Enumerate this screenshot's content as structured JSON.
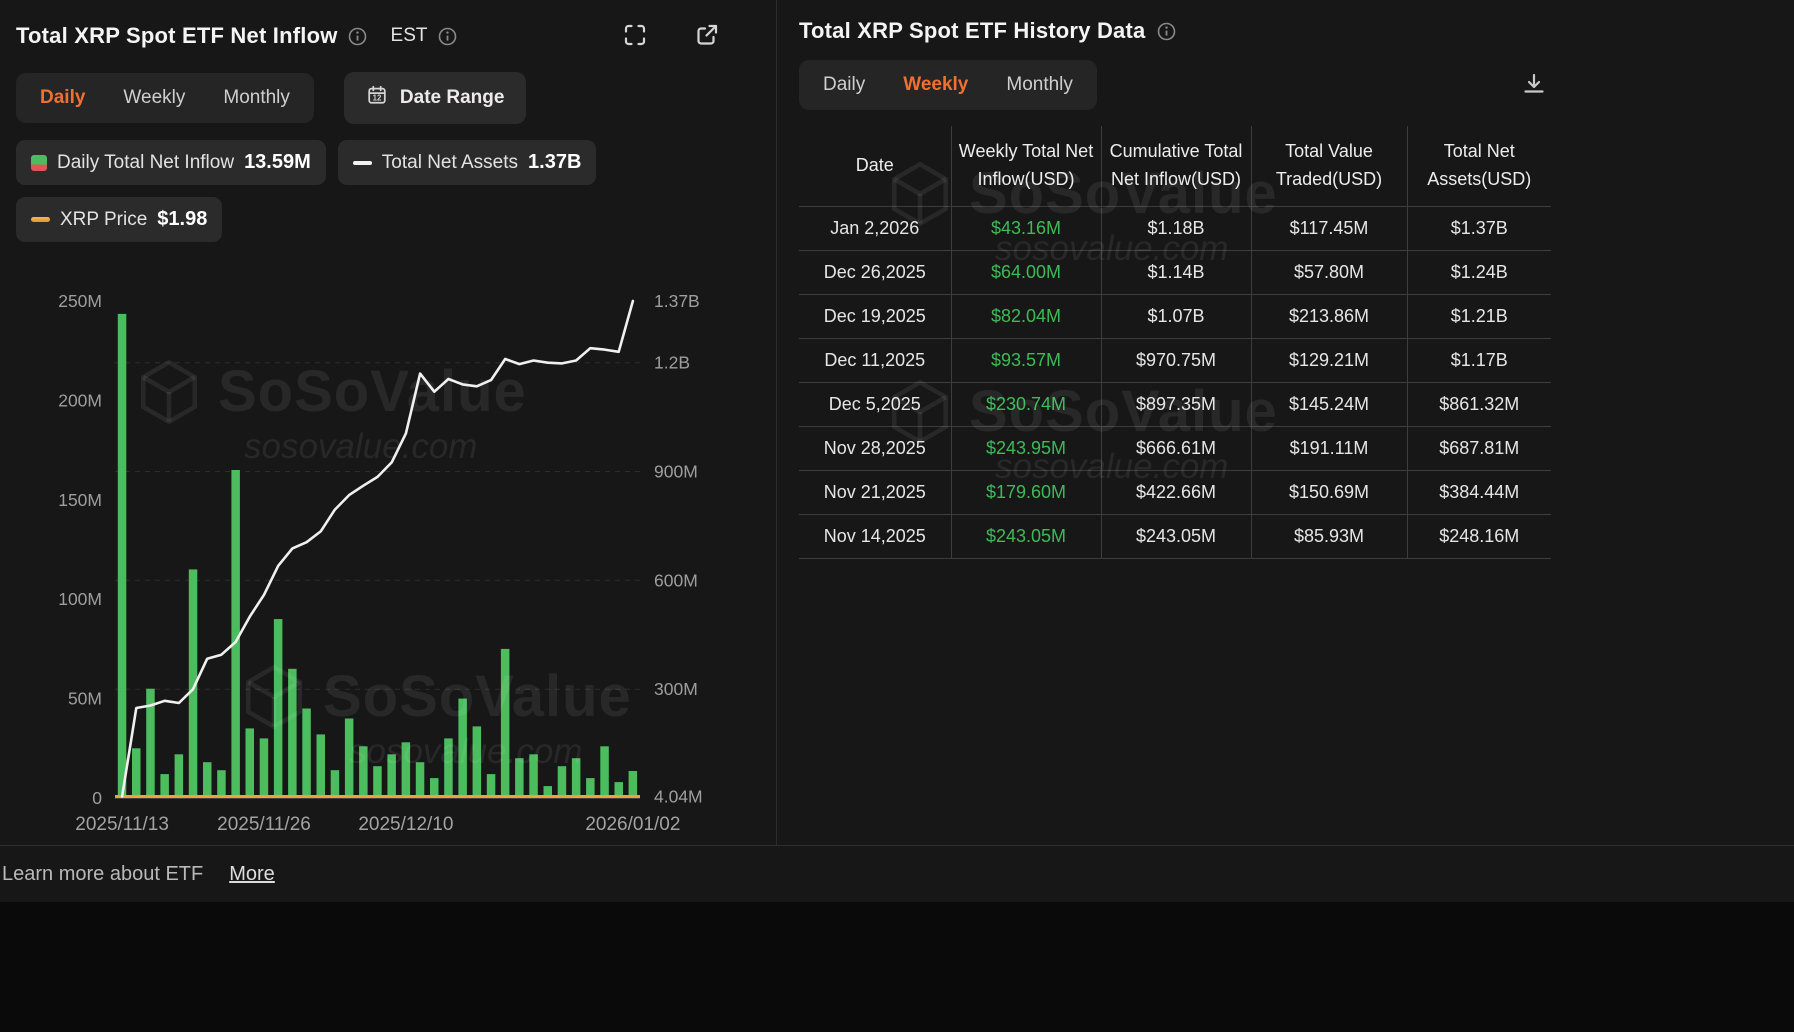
{
  "colors": {
    "accent_orange": "#f0702e",
    "positive_green": "#3dbb57",
    "bar_green": "#4bbd5e",
    "assets_line_white": "#f0f0f0",
    "price_line_orange": "#eda33c"
  },
  "watermark": {
    "brand": "SoSoValue",
    "domain": "sosovalue.com"
  },
  "left_panel": {
    "title": "Total XRP Spot ETF Net Inflow",
    "timezone": "EST",
    "tabs": [
      {
        "label": "Daily"
      },
      {
        "label": "Weekly"
      },
      {
        "label": "Monthly"
      }
    ],
    "active_tab": "Daily",
    "date_range_label": "Date Range",
    "legend": [
      {
        "label": "Daily Total Net Inflow",
        "value": "13.59M"
      },
      {
        "label": "Total Net Assets",
        "value": "1.37B"
      },
      {
        "label": "XRP Price",
        "value": "$1.98"
      }
    ]
  },
  "chart_data": {
    "type": "bar+line",
    "title": "Total XRP Spot ETF Net Inflow (Daily)",
    "x_range": [
      "2025/11/13",
      "2026/01/02"
    ],
    "x_tick_labels": [
      {
        "index": 0,
        "label": "2025/11/13"
      },
      {
        "index": 10,
        "label": "2025/11/26"
      },
      {
        "index": 20,
        "label": "2025/12/10"
      },
      {
        "index": 36,
        "label": "2026/01/02"
      }
    ],
    "left_axis": {
      "name": "Daily Total Net Inflow (USD)",
      "max": 250,
      "ticks": [
        "250M",
        "200M",
        "150M",
        "100M",
        "50M",
        "0"
      ],
      "tick_values": [
        250,
        200,
        150,
        100,
        50,
        0
      ]
    },
    "right_axis": {
      "name": "Total Net Assets (USD)",
      "max": 1370,
      "ticks": [
        {
          "label": "1.37B",
          "value": 1370
        },
        {
          "label": "1.2B",
          "value": 1200
        },
        {
          "label": "900M",
          "value": 900
        },
        {
          "label": "600M",
          "value": 600
        },
        {
          "label": "300M",
          "value": 300
        },
        {
          "label": "4.04M",
          "value": 4.04
        }
      ]
    },
    "bar_series": {
      "name": "Daily Total Net Inflow (USD, millions, estimated from chart)",
      "color": "#4bbd5e",
      "values": [
        243.5,
        25,
        55,
        12,
        22,
        115,
        18,
        14,
        165,
        35,
        30,
        90,
        65,
        45,
        32,
        14,
        40,
        26,
        16,
        22,
        28,
        18,
        10,
        30,
        50,
        36,
        12,
        75,
        20,
        22,
        6,
        16,
        20,
        10,
        26,
        8,
        13.59
      ]
    },
    "line_series": {
      "name": "Total Net Assets (USD, millions, estimated from chart)",
      "color": "#f0f0f0",
      "values": [
        4,
        248,
        255,
        268,
        262,
        300,
        384,
        395,
        430,
        500,
        560,
        640,
        688,
        705,
        735,
        795,
        835,
        861,
        885,
        925,
        1005,
        1170,
        1120,
        1155,
        1140,
        1135,
        1152,
        1210,
        1196,
        1206,
        1200,
        1198,
        1206,
        1240,
        1236,
        1230,
        1370
      ]
    },
    "price_series": {
      "name": "XRP Price (USD)",
      "color": "#eda33c",
      "current_value": 1.98,
      "note": "flat along baseline at this axis scale"
    }
  },
  "right_panel": {
    "title": "Total XRP Spot ETF History Data",
    "tabs": [
      {
        "label": "Daily"
      },
      {
        "label": "Weekly"
      },
      {
        "label": "Monthly"
      }
    ],
    "active_tab": "Weekly",
    "table": {
      "headers": [
        "Date",
        "Weekly Total Net Inflow(USD)",
        "Cumulative Total Net Inflow(USD)",
        "Total Value Traded(USD)",
        "Total Net Assets(USD)"
      ],
      "rows": [
        {
          "date": "Jan 2,2026",
          "inflow": "$43.16M",
          "cumulative": "$1.18B",
          "traded": "$117.45M",
          "assets": "$1.37B"
        },
        {
          "date": "Dec 26,2025",
          "inflow": "$64.00M",
          "cumulative": "$1.14B",
          "traded": "$57.80M",
          "assets": "$1.24B"
        },
        {
          "date": "Dec 19,2025",
          "inflow": "$82.04M",
          "cumulative": "$1.07B",
          "traded": "$213.86M",
          "assets": "$1.21B"
        },
        {
          "date": "Dec 11,2025",
          "inflow": "$93.57M",
          "cumulative": "$970.75M",
          "traded": "$129.21M",
          "assets": "$1.17B"
        },
        {
          "date": "Dec 5,2025",
          "inflow": "$230.74M",
          "cumulative": "$897.35M",
          "traded": "$145.24M",
          "assets": "$861.32M"
        },
        {
          "date": "Nov 28,2025",
          "inflow": "$243.95M",
          "cumulative": "$666.61M",
          "traded": "$191.11M",
          "assets": "$687.81M"
        },
        {
          "date": "Nov 21,2025",
          "inflow": "$179.60M",
          "cumulative": "$422.66M",
          "traded": "$150.69M",
          "assets": "$384.44M"
        },
        {
          "date": "Nov 14,2025",
          "inflow": "$243.05M",
          "cumulative": "$243.05M",
          "traded": "$85.93M",
          "assets": "$248.16M"
        }
      ]
    }
  },
  "footer": {
    "text": "Learn more about ETF",
    "link_label": "More"
  }
}
